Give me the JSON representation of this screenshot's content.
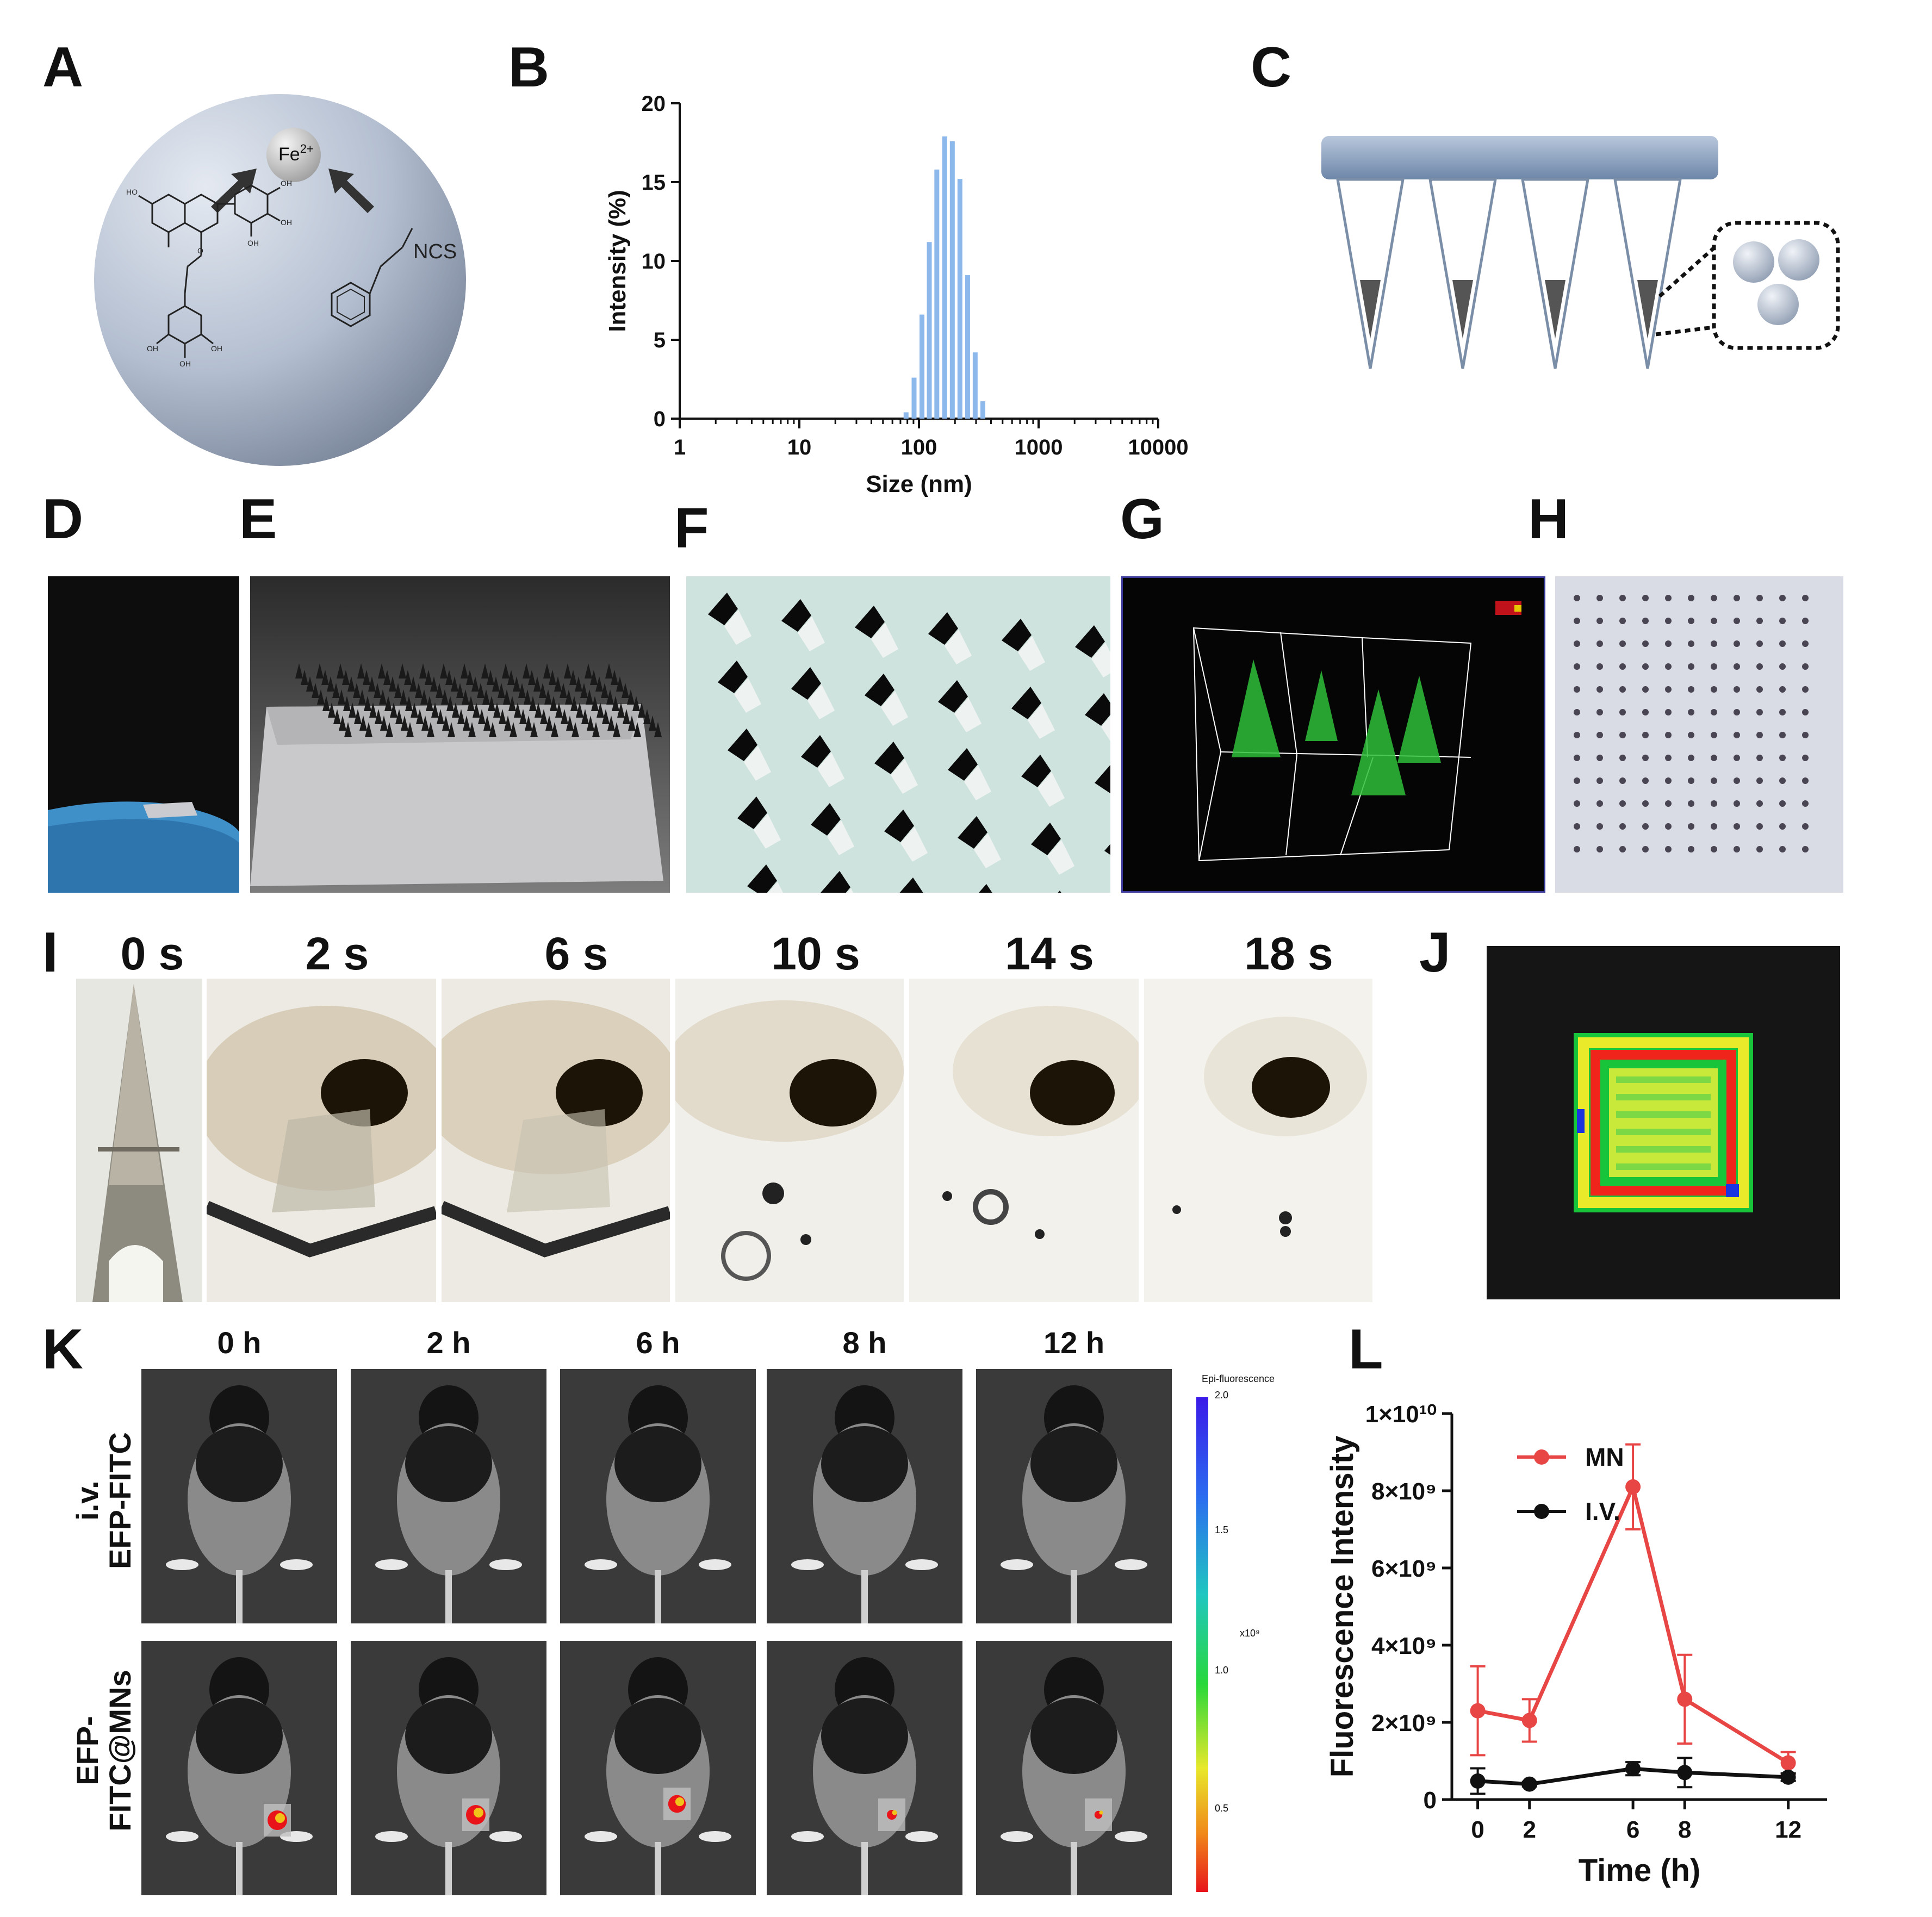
{
  "panels": {
    "A": "A",
    "B": "B",
    "C": "C",
    "D": "D",
    "E": "E",
    "F": "F",
    "G": "G",
    "H": "H",
    "I": "I",
    "J": "J",
    "K": "K",
    "L": "L"
  },
  "panelA": {
    "ion_base": "Fe",
    "ion_charge": "2+",
    "ncs": "NCS",
    "oh": "OH",
    "ho": "HO",
    "o": "O"
  },
  "panelI": {
    "times": [
      "0 s",
      "2 s",
      "6 s",
      "10 s",
      "14 s",
      "18 s"
    ]
  },
  "panelK": {
    "times": [
      "0 h",
      "2 h",
      "6 h",
      "8 h",
      "12 h"
    ],
    "row1": [
      "i.v.",
      "EFP-FITC"
    ],
    "row2": [
      "EFP-",
      "FITC@MNs"
    ],
    "colorbar": {
      "title": "Epi-fluorescence",
      "ticks": [
        "2.0",
        "1.5",
        "1.0",
        "0.5"
      ],
      "exponent": "x10⁹"
    }
  },
  "chart_data": [
    {
      "type": "bar",
      "panel": "B",
      "xlabel": "Size (nm)",
      "ylabel": "Intensity (%)",
      "xscale": "log",
      "xlim": [
        1,
        10000
      ],
      "ylim": [
        0,
        20
      ],
      "xticks": [
        "1",
        "10",
        "100",
        "1000",
        "10000"
      ],
      "yticks": [
        "0",
        "5",
        "10",
        "15",
        "20"
      ],
      "color": "#8cb8ec",
      "x": [
        78,
        91,
        106,
        122,
        141,
        164,
        190,
        220,
        255,
        295,
        342
      ],
      "values": [
        0.4,
        2.6,
        6.6,
        11.2,
        15.8,
        17.9,
        17.6,
        15.2,
        9.1,
        4.2,
        1.1
      ]
    },
    {
      "type": "line",
      "panel": "L",
      "xlabel": "Time (h)",
      "ylabel": "Fluorescence Intensity",
      "xlim": [
        -1,
        13.5
      ],
      "ylim": [
        0,
        10000000000
      ],
      "xticks": [
        "0",
        "2",
        "6",
        "8",
        "12"
      ],
      "yticks": [
        "0",
        "2×10⁹",
        "4×10⁹",
        "6×10⁹",
        "8×10⁹",
        "1×10¹⁰"
      ],
      "x": [
        0,
        2,
        6,
        8,
        12
      ],
      "series": [
        {
          "name": "MN",
          "color": "#e84545",
          "values": [
            2300000000,
            2050000000,
            8100000000,
            2600000000,
            950000000
          ],
          "errors": [
            1150000000,
            550000000,
            1100000000,
            1150000000,
            280000000
          ]
        },
        {
          "name": "I.V.",
          "color": "#111111",
          "values": [
            480000000,
            400000000,
            800000000,
            700000000,
            580000000
          ],
          "errors": [
            330000000,
            60000000,
            170000000,
            380000000,
            100000000
          ]
        }
      ]
    }
  ]
}
